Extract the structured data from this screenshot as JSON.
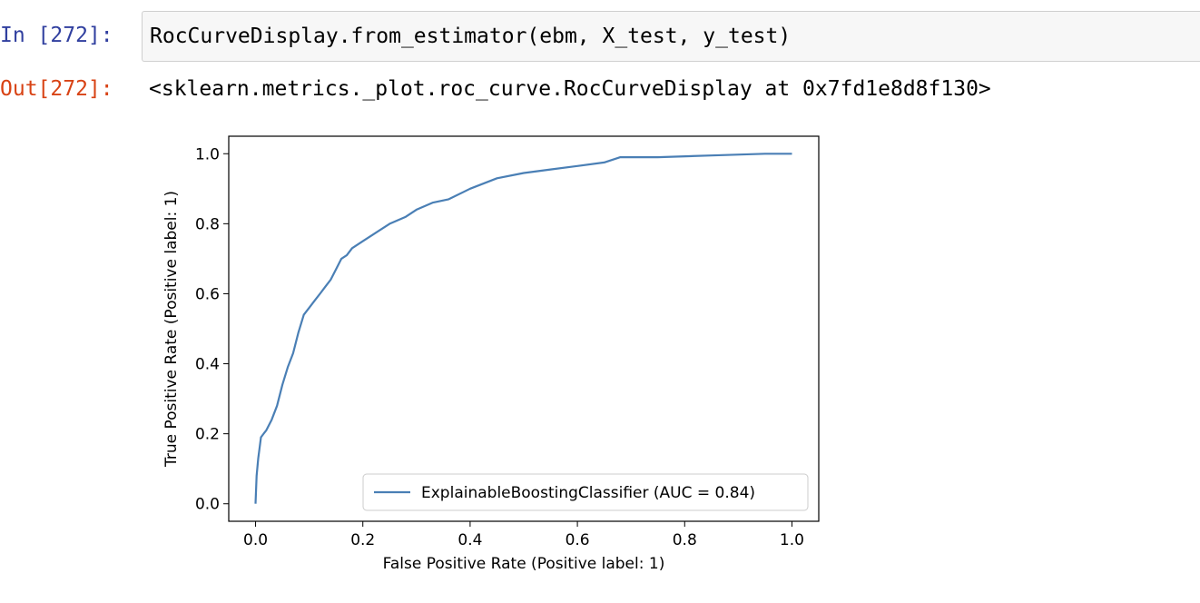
{
  "input_cell": {
    "prompt": "In [272]:",
    "code": "RocCurveDisplay.from_estimator(ebm, X_test, y_test)"
  },
  "output_cell": {
    "prompt": "Out[272]:",
    "text": "<sklearn.metrics._plot.roc_curve.RocCurveDisplay at 0x7fd1e8d8f130>"
  },
  "chart_data": {
    "type": "line",
    "xlabel": "False Positive Rate (Positive label: 1)",
    "ylabel": "True Positive Rate (Positive label: 1)",
    "xlim": [
      -0.05,
      1.05
    ],
    "ylim": [
      -0.05,
      1.05
    ],
    "xticks": [
      "0.0",
      "0.2",
      "0.4",
      "0.6",
      "0.8",
      "1.0"
    ],
    "yticks": [
      "0.0",
      "0.2",
      "0.4",
      "0.6",
      "0.8",
      "1.0"
    ],
    "grid": false,
    "legend_position": "lower-right",
    "series": [
      {
        "name": "ExplainableBoostingClassifier (AUC = 0.84)",
        "color": "#4a7fb5",
        "x": [
          0,
          0.002,
          0.005,
          0.01,
          0.015,
          0.02,
          0.03,
          0.04,
          0.05,
          0.06,
          0.07,
          0.08,
          0.09,
          0.1,
          0.11,
          0.12,
          0.13,
          0.14,
          0.15,
          0.16,
          0.17,
          0.18,
          0.2,
          0.22,
          0.25,
          0.28,
          0.3,
          0.33,
          0.36,
          0.4,
          0.45,
          0.5,
          0.55,
          0.6,
          0.65,
          0.68,
          0.75,
          0.85,
          0.95,
          1.0
        ],
        "y": [
          0,
          0.08,
          0.13,
          0.19,
          0.2,
          0.21,
          0.24,
          0.28,
          0.34,
          0.39,
          0.43,
          0.49,
          0.54,
          0.56,
          0.58,
          0.6,
          0.62,
          0.64,
          0.67,
          0.7,
          0.71,
          0.73,
          0.75,
          0.77,
          0.8,
          0.82,
          0.84,
          0.86,
          0.87,
          0.9,
          0.93,
          0.945,
          0.955,
          0.965,
          0.975,
          0.99,
          0.99,
          0.995,
          1.0,
          1.0
        ]
      }
    ]
  }
}
